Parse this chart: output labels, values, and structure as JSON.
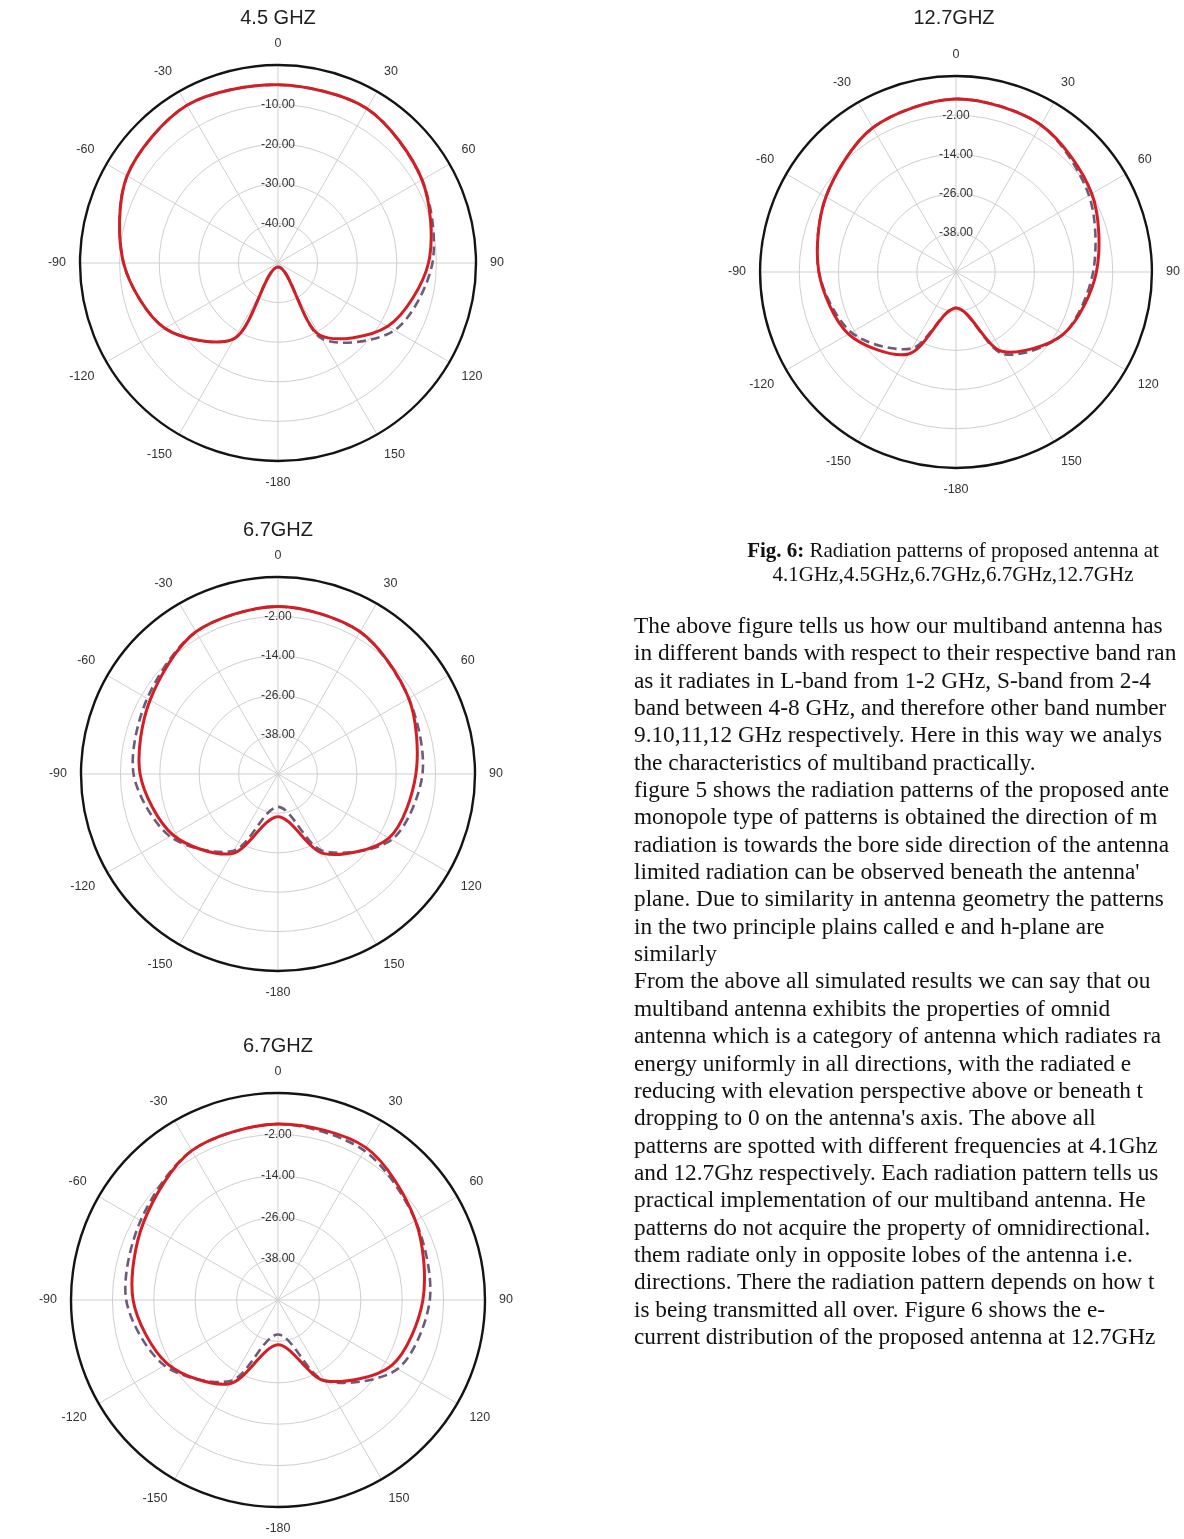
{
  "chart_data": [
    {
      "type": "radar",
      "title": "4.5 GHZ",
      "categories": [
        "0",
        "30",
        "60",
        "90",
        "120",
        "150",
        "-180",
        "-150",
        "-120",
        "-90",
        "-60",
        "-30"
      ],
      "series": [
        {
          "color": "#d21f26",
          "line_style": "solid",
          "values": [
            -5,
            -5,
            -8,
            -12,
            -18,
            -29,
            -49,
            -28,
            -17,
            -11,
            -6,
            -4
          ]
        },
        {
          "color": "#6e5a78",
          "line_style": "dashed",
          "values": [
            -5,
            -5,
            -8,
            -11,
            -16,
            -28,
            -49,
            -28,
            -17,
            -11,
            -6,
            -4
          ]
        }
      ],
      "ylim": [
        -50,
        0
      ],
      "yticks": [
        {
          "value": -40,
          "label": "-40.00"
        },
        {
          "value": -30,
          "label": "-30.00"
        },
        {
          "value": -20,
          "label": "-20.00"
        },
        {
          "value": -10,
          "label": "-10.00"
        }
      ],
      "grid": true,
      "marker": "none"
    },
    {
      "type": "radar",
      "title": "12.7GHZ",
      "categories": [
        "0",
        "30",
        "60",
        "90",
        "120",
        "150",
        "-180",
        "-150",
        "-120",
        "-90",
        "-60",
        "-30"
      ],
      "series": [
        {
          "color": "#d21f26",
          "line_style": "solid",
          "values": [
            3,
            2,
            -2,
            -7,
            -12,
            -22,
            -39,
            -21,
            -12,
            -8,
            -4,
            1
          ]
        },
        {
          "color": "#6e5a78",
          "line_style": "dashed",
          "values": [
            3,
            2,
            -3,
            -8,
            -12,
            -21,
            -39,
            -23,
            -13,
            -8,
            -4,
            1
          ]
        }
      ],
      "ylim": [
        -50,
        10
      ],
      "yticks": [
        {
          "value": -38,
          "label": "-38.00"
        },
        {
          "value": -26,
          "label": "-26.00"
        },
        {
          "value": -14,
          "label": "-14.00"
        },
        {
          "value": -2,
          "label": "-2.00"
        }
      ],
      "grid": true,
      "marker": "none"
    },
    {
      "type": "radar",
      "title": "6.7GHZ",
      "categories": [
        "0",
        "30",
        "60",
        "90",
        "120",
        "150",
        "-180",
        "-150",
        "-120",
        "-90",
        "-60",
        "-30"
      ],
      "series": [
        {
          "color": "#d21f26",
          "line_style": "solid",
          "values": [
            1,
            0,
            -4,
            -8,
            -11,
            -22,
            -37,
            -22,
            -13,
            -8,
            -5,
            0
          ]
        },
        {
          "color": "#6e5a78",
          "line_style": "dashed",
          "values": [
            1,
            0,
            -4,
            -6,
            -10,
            -23,
            -40,
            -23,
            -12,
            -6,
            -4,
            0
          ]
        }
      ],
      "ylim": [
        -50,
        10
      ],
      "yticks": [
        {
          "value": -38,
          "label": "-38.00"
        },
        {
          "value": -26,
          "label": "-26.00"
        },
        {
          "value": -14,
          "label": "-14.00"
        },
        {
          "value": -2,
          "label": "-2.00"
        }
      ],
      "grid": true,
      "marker": "none"
    },
    {
      "type": "other",
      "annotations": [
        "Fig. 6:",
        "Radiation patterns of proposed antenna at 4.1GHz,4.5GHz,6.7GHz,6.7GHz,12.7GHz",
        "The above figure tells us how our multiband antenna has\nin different bands with respect to their respective band ran\nas it radiates in L-band from 1-2 GHz, S-band from 2-4\nband between 4-8 GHz, and therefore other band number\n9.10,11,12 GHz respectively. Here in this way we analys\nthe characteristics of multiband practically.",
        "figure 5 shows the radiation patterns of the proposed ante\nmonopole type of patterns is obtained the direction of m\nradiation is towards the bore side direction of the antenna\nlimited radiation can be observed beneath the antenna'\nplane. Due to similarity in antenna geometry the patterns\nin the two principle plains called e and h-plane are\nsimilarly",
        "From the above all simulated results we can say that ou\nmultiband antenna exhibits the properties of omnid\nantenna which is a category of antenna which radiates ra\nenergy uniformly in all directions, with the radiated e\nreducing with elevation perspective above or beneath t\ndropping to 0 on the antenna's axis. The above all\npatterns are spotted with different frequencies at 4.1Ghz\nand 12.7Ghz respectively. Each radiation pattern tells us\npractical implementation of our multiband antenna. He\npatterns do not acquire the property of omnidirectional.\nthem radiate only in opposite lobes of the antenna i.e.\ndirections. There the radiation pattern depends on how t\nis being transmitted all over. Figure 6 shows the e-\ncurrent distribution of the proposed antenna at 12.7GHz"
      ]
    },
    {
      "type": "radar",
      "title": "6.7GHZ",
      "categories": [
        "0",
        "30",
        "60",
        "90",
        "120",
        "150",
        "-180",
        "-150",
        "-120",
        "-90",
        "-60",
        "-30"
      ],
      "series": [
        {
          "color": "#d21f26",
          "line_style": "solid",
          "values": [
            1,
            1,
            -4,
            -8,
            -12,
            -23,
            -37,
            -22,
            -13,
            -8,
            -5,
            0
          ]
        },
        {
          "color": "#6e5a78",
          "line_style": "dashed",
          "values": [
            1,
            0,
            -4,
            -6,
            -10,
            -23,
            -40,
            -23,
            -12,
            -6,
            -4,
            0
          ]
        }
      ],
      "ylim": [
        -50,
        10
      ],
      "yticks": [
        {
          "value": -38,
          "label": "-38.00"
        },
        {
          "value": -26,
          "label": "-26.00"
        },
        {
          "value": -14,
          "label": "-14.00"
        },
        {
          "value": -2,
          "label": "-2.00"
        }
      ],
      "grid": true,
      "marker": "none"
    }
  ]
}
